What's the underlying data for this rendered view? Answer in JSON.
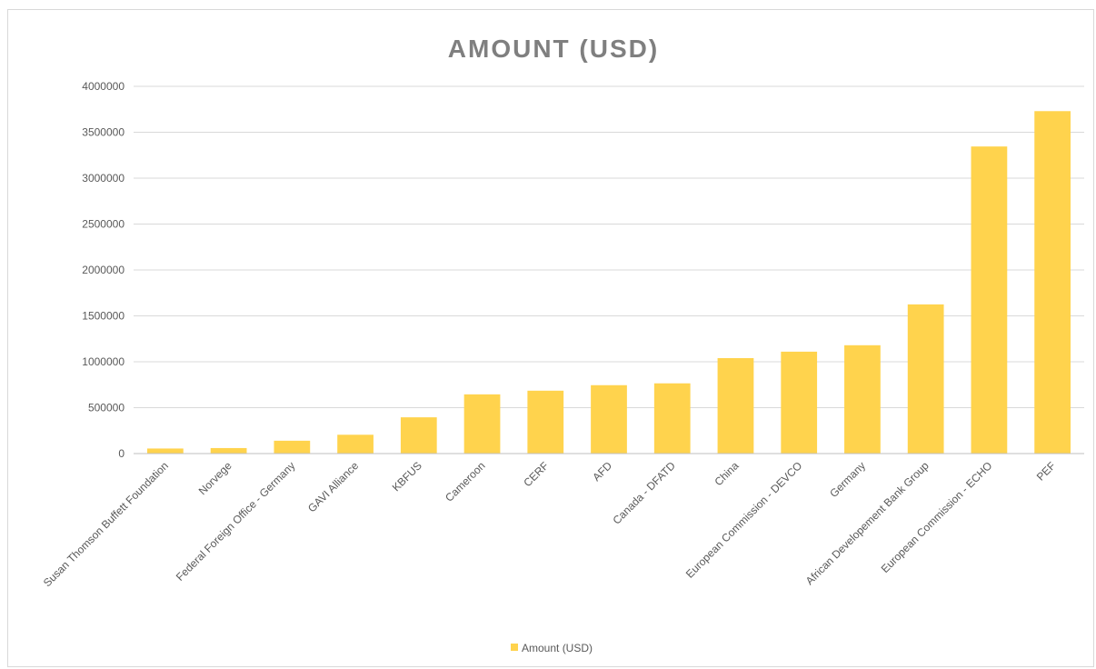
{
  "chart_data": {
    "type": "bar",
    "title": "AMOUNT (USD)",
    "xlabel": "",
    "ylabel": "",
    "ylim": [
      0,
      4000000
    ],
    "yticks": [
      0,
      500000,
      1000000,
      1500000,
      2000000,
      2500000,
      3000000,
      3500000,
      4000000
    ],
    "grid": true,
    "legend_position": "bottom",
    "categories": [
      "Susan Thomson Buffett Foundation",
      "Norvege",
      "Federal Foreign Office - Germany",
      "GAVI Alliance",
      "KBFUS",
      "Cameroon",
      "CERF",
      "AFD",
      "Canada - DFATD",
      "China",
      "European Commission - DEVCO",
      "Germany",
      "African Developement Bank Group",
      "European Commission - ECHO",
      "PEF"
    ],
    "series": [
      {
        "name": "Amount (USD)",
        "color": "#ffd34d",
        "values": [
          55000,
          60000,
          140000,
          205000,
          395000,
          645000,
          685000,
          745000,
          765000,
          1040000,
          1110000,
          1180000,
          1625000,
          3345000,
          3730000
        ]
      }
    ]
  }
}
